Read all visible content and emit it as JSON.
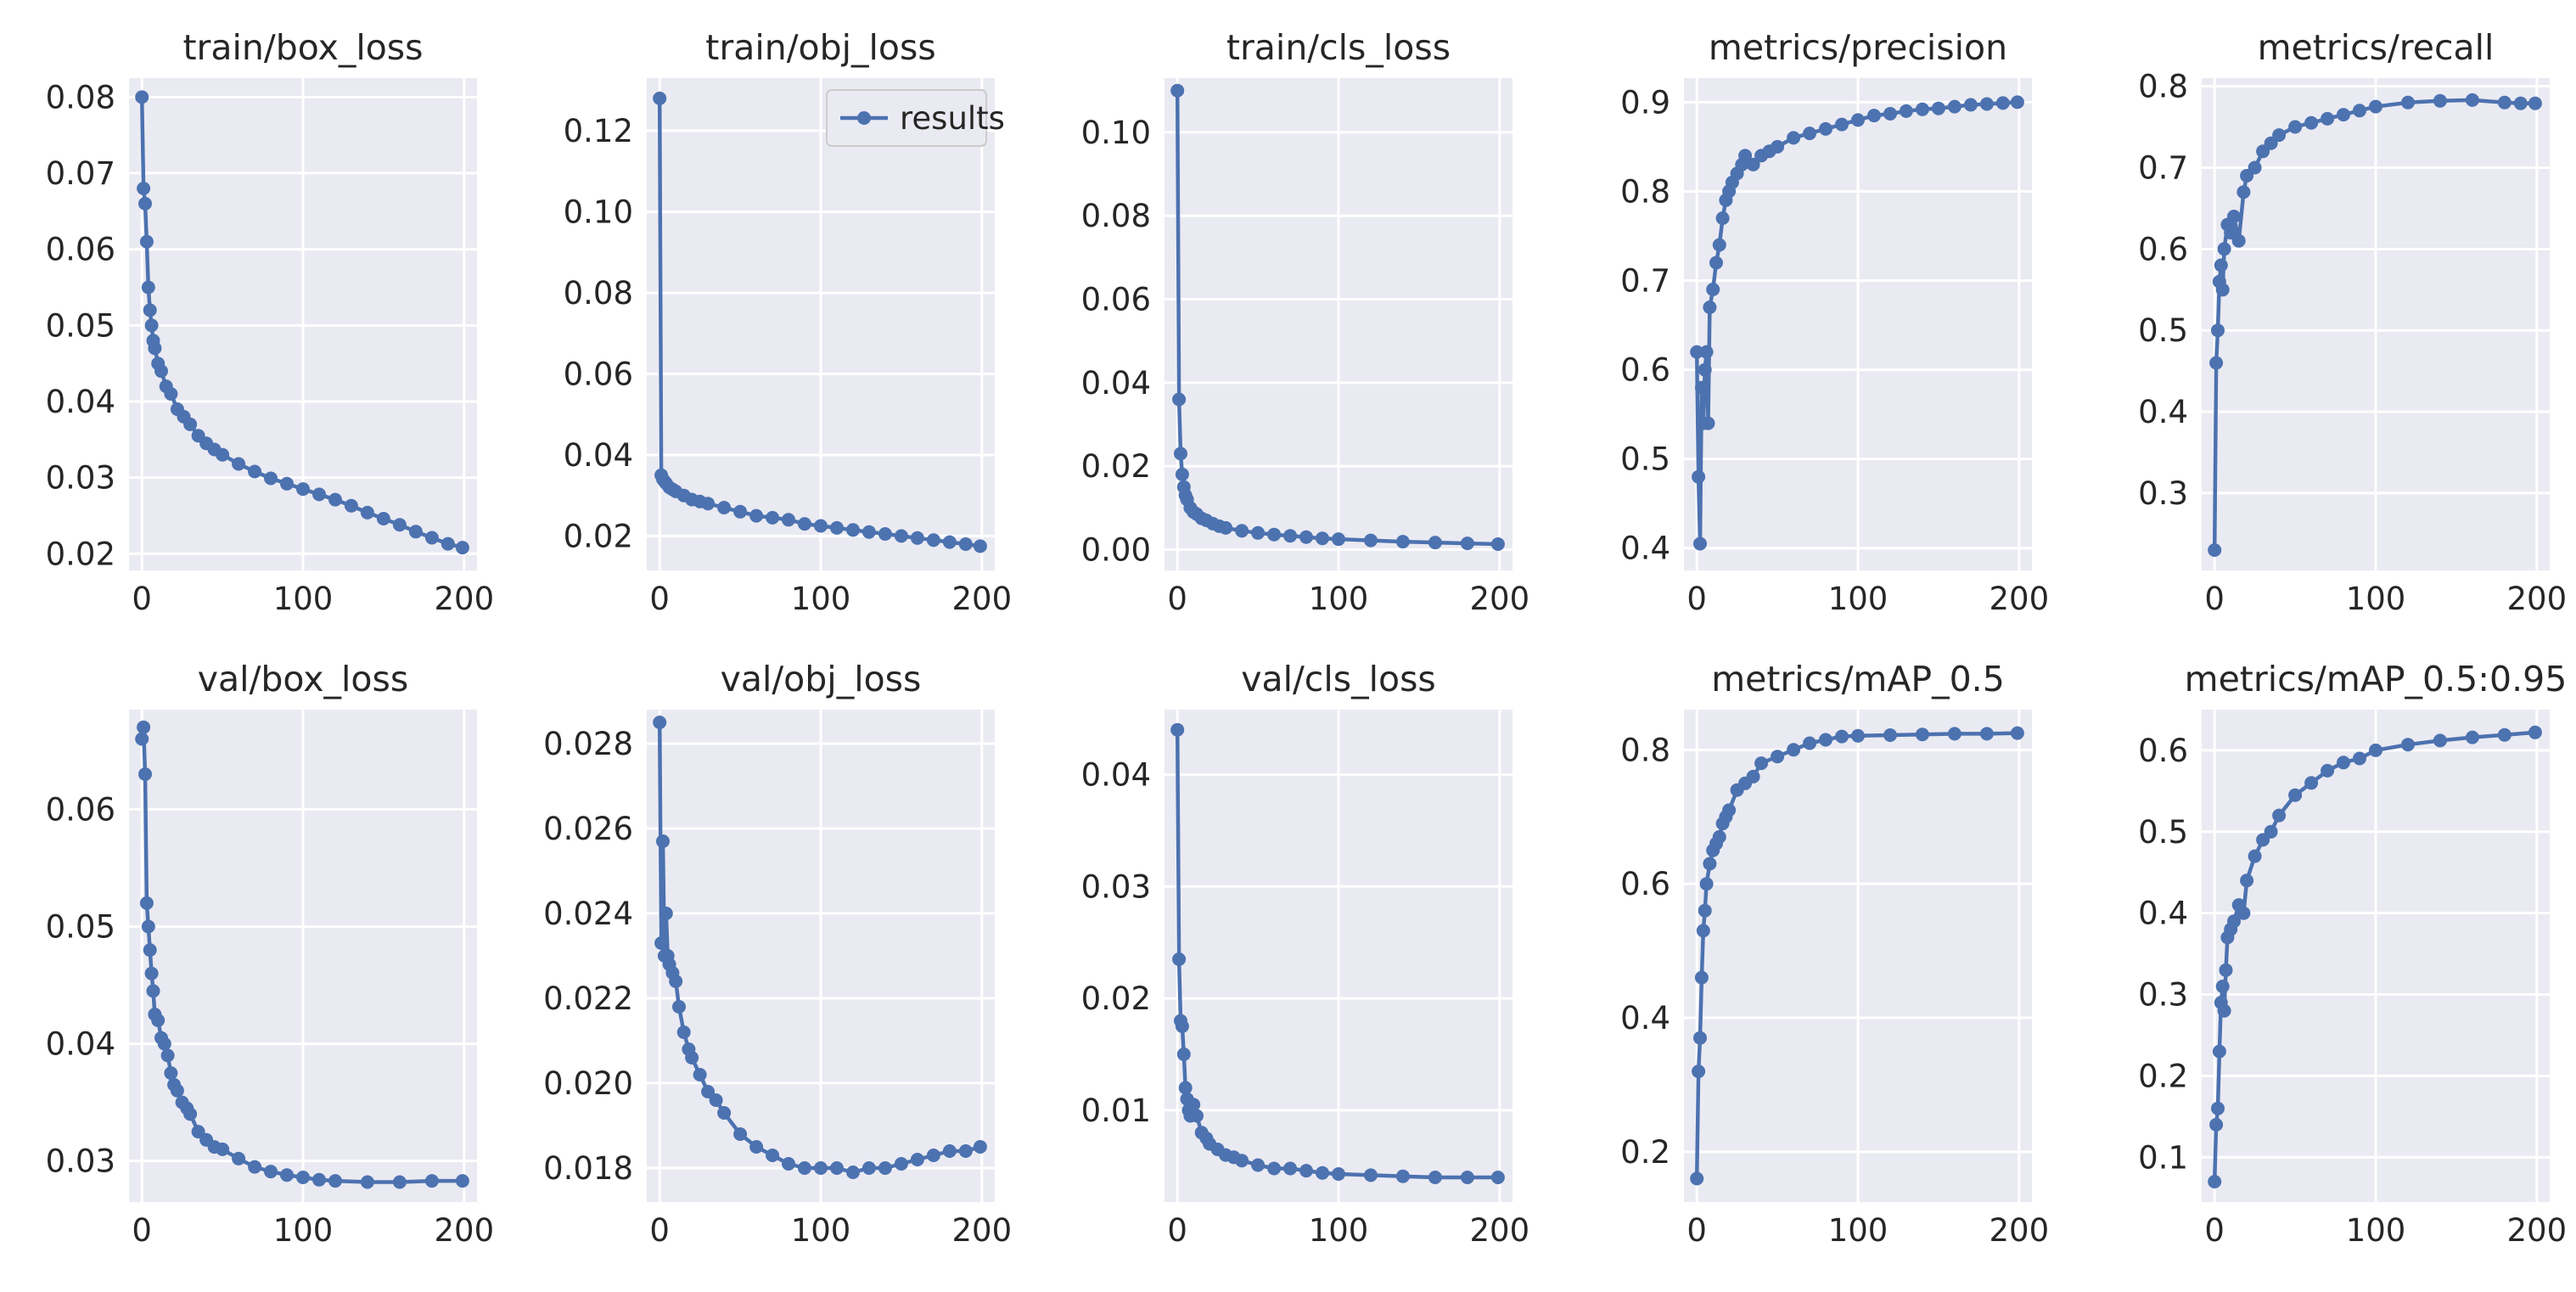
{
  "figure": {
    "series_color": "#4c72b0",
    "background": "#eaeaf2",
    "legend_label": "results"
  },
  "chart_data": [
    {
      "type": "line",
      "title": "train/box_loss",
      "xlim": [
        -8,
        208
      ],
      "ylim": [
        0.0178,
        0.0825
      ],
      "xticks": [
        0,
        100,
        200
      ],
      "xtick_labels": [
        "0",
        "100",
        "200"
      ],
      "yticks": [
        0.02,
        0.03,
        0.04,
        0.05,
        0.06,
        0.07,
        0.08
      ],
      "ytick_labels": [
        "0.02",
        "0.03",
        "0.04",
        "0.05",
        "0.06",
        "0.07",
        "0.08"
      ],
      "legend": false,
      "series": [
        {
          "name": "results",
          "x": [
            0,
            1,
            2,
            3,
            4,
            5,
            6,
            7,
            8,
            10,
            12,
            15,
            18,
            22,
            26,
            30,
            35,
            40,
            45,
            50,
            60,
            70,
            80,
            90,
            100,
            110,
            120,
            130,
            140,
            150,
            160,
            170,
            180,
            190,
            199
          ],
          "y": [
            0.08,
            0.068,
            0.066,
            0.061,
            0.055,
            0.052,
            0.05,
            0.048,
            0.047,
            0.045,
            0.044,
            0.042,
            0.041,
            0.039,
            0.038,
            0.037,
            0.0355,
            0.0345,
            0.0337,
            0.033,
            0.0318,
            0.0308,
            0.0299,
            0.0292,
            0.0285,
            0.0278,
            0.0271,
            0.0263,
            0.0254,
            0.0246,
            0.0238,
            0.0229,
            0.0221,
            0.0213,
            0.0208
          ]
        }
      ]
    },
    {
      "type": "line",
      "title": "train/obj_loss",
      "xlim": [
        -8,
        208
      ],
      "ylim": [
        0.0115,
        0.133
      ],
      "xticks": [
        0,
        100,
        200
      ],
      "xtick_labels": [
        "0",
        "100",
        "200"
      ],
      "yticks": [
        0.02,
        0.04,
        0.06,
        0.08,
        0.1,
        0.12
      ],
      "ytick_labels": [
        "0.02",
        "0.04",
        "0.06",
        "0.08",
        "0.10",
        "0.12"
      ],
      "legend": true,
      "series": [
        {
          "name": "results",
          "x": [
            0,
            1,
            2,
            3,
            4,
            6,
            8,
            10,
            15,
            20,
            25,
            30,
            40,
            50,
            60,
            70,
            80,
            90,
            100,
            110,
            120,
            130,
            140,
            150,
            160,
            170,
            180,
            190,
            199
          ],
          "y": [
            0.128,
            0.035,
            0.034,
            0.0335,
            0.033,
            0.032,
            0.0315,
            0.031,
            0.03,
            0.029,
            0.0285,
            0.028,
            0.027,
            0.026,
            0.025,
            0.0245,
            0.024,
            0.023,
            0.0225,
            0.022,
            0.0215,
            0.021,
            0.0205,
            0.02,
            0.0195,
            0.019,
            0.0185,
            0.018,
            0.0175
          ]
        }
      ]
    },
    {
      "type": "line",
      "title": "train/cls_loss",
      "xlim": [
        -8,
        208
      ],
      "ylim": [
        -0.005,
        0.113
      ],
      "xticks": [
        0,
        100,
        200
      ],
      "xtick_labels": [
        "0",
        "100",
        "200"
      ],
      "yticks": [
        0.0,
        0.02,
        0.04,
        0.06,
        0.08,
        0.1
      ],
      "ytick_labels": [
        "0.00",
        "0.02",
        "0.04",
        "0.06",
        "0.08",
        "0.10"
      ],
      "legend": false,
      "series": [
        {
          "name": "results",
          "x": [
            0,
            1,
            2,
            3,
            4,
            5,
            6,
            8,
            10,
            12,
            15,
            18,
            22,
            26,
            30,
            40,
            50,
            60,
            70,
            80,
            90,
            100,
            120,
            140,
            160,
            180,
            199
          ],
          "y": [
            0.11,
            0.036,
            0.023,
            0.018,
            0.015,
            0.013,
            0.012,
            0.01,
            0.009,
            0.0085,
            0.0075,
            0.007,
            0.0062,
            0.0056,
            0.0052,
            0.0045,
            0.004,
            0.0036,
            0.0033,
            0.003,
            0.0027,
            0.0025,
            0.0022,
            0.0019,
            0.0017,
            0.0015,
            0.0013
          ]
        }
      ]
    },
    {
      "type": "line",
      "title": "metrics/precision",
      "xlim": [
        -8,
        208
      ],
      "ylim": [
        0.375,
        0.927
      ],
      "xticks": [
        0,
        100,
        200
      ],
      "xtick_labels": [
        "0",
        "100",
        "200"
      ],
      "yticks": [
        0.4,
        0.5,
        0.6,
        0.7,
        0.8,
        0.9
      ],
      "ytick_labels": [
        "0.4",
        "0.5",
        "0.6",
        "0.7",
        "0.8",
        "0.9"
      ],
      "legend": false,
      "series": [
        {
          "name": "results",
          "x": [
            0,
            1,
            2,
            3,
            4,
            5,
            6,
            7,
            8,
            10,
            12,
            14,
            16,
            18,
            20,
            22,
            25,
            28,
            30,
            35,
            40,
            45,
            50,
            60,
            70,
            80,
            90,
            100,
            110,
            120,
            130,
            140,
            150,
            160,
            170,
            180,
            190,
            199
          ],
          "y": [
            0.62,
            0.48,
            0.405,
            0.58,
            0.54,
            0.6,
            0.62,
            0.54,
            0.67,
            0.69,
            0.72,
            0.74,
            0.77,
            0.79,
            0.8,
            0.81,
            0.82,
            0.83,
            0.84,
            0.83,
            0.84,
            0.845,
            0.85,
            0.86,
            0.865,
            0.87,
            0.875,
            0.88,
            0.885,
            0.887,
            0.89,
            0.892,
            0.893,
            0.895,
            0.897,
            0.898,
            0.899,
            0.9
          ]
        }
      ]
    },
    {
      "type": "line",
      "title": "metrics/recall",
      "xlim": [
        -8,
        208
      ],
      "ylim": [
        0.205,
        0.81
      ],
      "xticks": [
        0,
        100,
        200
      ],
      "xtick_labels": [
        "0",
        "100",
        "200"
      ],
      "yticks": [
        0.3,
        0.4,
        0.5,
        0.6,
        0.7,
        0.8
      ],
      "ytick_labels": [
        "0.3",
        "0.4",
        "0.5",
        "0.6",
        "0.7",
        "0.8"
      ],
      "legend": false,
      "series": [
        {
          "name": "results",
          "x": [
            0,
            1,
            2,
            3,
            4,
            5,
            6,
            8,
            10,
            12,
            15,
            18,
            20,
            25,
            30,
            35,
            40,
            50,
            60,
            70,
            80,
            90,
            100,
            120,
            140,
            160,
            180,
            190,
            199
          ],
          "y": [
            0.23,
            0.46,
            0.5,
            0.56,
            0.58,
            0.55,
            0.6,
            0.63,
            0.62,
            0.64,
            0.61,
            0.67,
            0.69,
            0.7,
            0.72,
            0.73,
            0.74,
            0.75,
            0.755,
            0.76,
            0.765,
            0.77,
            0.775,
            0.78,
            0.782,
            0.783,
            0.78,
            0.779,
            0.779
          ]
        }
      ]
    },
    {
      "type": "line",
      "title": "val/box_loss",
      "xlim": [
        -8,
        208
      ],
      "ylim": [
        0.0265,
        0.0685
      ],
      "xticks": [
        0,
        100,
        200
      ],
      "xtick_labels": [
        "0",
        "100",
        "200"
      ],
      "yticks": [
        0.03,
        0.04,
        0.05,
        0.06
      ],
      "ytick_labels": [
        "0.03",
        "0.04",
        "0.05",
        "0.06"
      ],
      "legend": false,
      "series": [
        {
          "name": "results",
          "x": [
            0,
            1,
            2,
            3,
            4,
            5,
            6,
            7,
            8,
            10,
            12,
            14,
            16,
            18,
            20,
            22,
            25,
            28,
            30,
            35,
            40,
            45,
            50,
            60,
            70,
            80,
            90,
            100,
            110,
            120,
            140,
            160,
            180,
            199
          ],
          "y": [
            0.066,
            0.067,
            0.063,
            0.052,
            0.05,
            0.048,
            0.046,
            0.0445,
            0.0425,
            0.042,
            0.0405,
            0.04,
            0.039,
            0.0375,
            0.0365,
            0.036,
            0.035,
            0.0345,
            0.034,
            0.0325,
            0.0318,
            0.0312,
            0.031,
            0.0302,
            0.0295,
            0.0291,
            0.0288,
            0.0286,
            0.0284,
            0.0283,
            0.0282,
            0.0282,
            0.0283,
            0.0283
          ]
        }
      ]
    },
    {
      "type": "line",
      "title": "val/obj_loss",
      "xlim": [
        -8,
        208
      ],
      "ylim": [
        0.0172,
        0.0288
      ],
      "xticks": [
        0,
        100,
        200
      ],
      "xtick_labels": [
        "0",
        "100",
        "200"
      ],
      "yticks": [
        0.018,
        0.02,
        0.022,
        0.024,
        0.026,
        0.028
      ],
      "ytick_labels": [
        "0.018",
        "0.020",
        "0.022",
        "0.024",
        "0.026",
        "0.028"
      ],
      "legend": false,
      "series": [
        {
          "name": "results",
          "x": [
            0,
            1,
            2,
            3,
            4,
            5,
            6,
            8,
            10,
            12,
            15,
            18,
            20,
            25,
            30,
            35,
            40,
            50,
            60,
            70,
            80,
            90,
            100,
            110,
            120,
            130,
            140,
            150,
            160,
            170,
            180,
            190,
            199
          ],
          "y": [
            0.0285,
            0.0233,
            0.0257,
            0.023,
            0.024,
            0.023,
            0.0228,
            0.0226,
            0.0224,
            0.0218,
            0.0212,
            0.0208,
            0.0206,
            0.0202,
            0.0198,
            0.0196,
            0.0193,
            0.0188,
            0.0185,
            0.0183,
            0.0181,
            0.018,
            0.018,
            0.018,
            0.0179,
            0.018,
            0.018,
            0.0181,
            0.0182,
            0.0183,
            0.0184,
            0.0184,
            0.0185
          ]
        }
      ]
    },
    {
      "type": "line",
      "title": "val/cls_loss",
      "xlim": [
        -8,
        208
      ],
      "ylim": [
        0.0018,
        0.0458
      ],
      "xticks": [
        0,
        100,
        200
      ],
      "xtick_labels": [
        "0",
        "100",
        "200"
      ],
      "yticks": [
        0.01,
        0.02,
        0.03,
        0.04
      ],
      "ytick_labels": [
        "0.01",
        "0.02",
        "0.03",
        "0.04"
      ],
      "legend": false,
      "series": [
        {
          "name": "results",
          "x": [
            0,
            1,
            2,
            3,
            4,
            5,
            6,
            7,
            8,
            10,
            12,
            15,
            18,
            20,
            25,
            30,
            35,
            40,
            50,
            60,
            70,
            80,
            90,
            100,
            120,
            140,
            160,
            180,
            199
          ],
          "y": [
            0.044,
            0.0235,
            0.018,
            0.0175,
            0.015,
            0.012,
            0.011,
            0.01,
            0.0095,
            0.0105,
            0.0095,
            0.008,
            0.0075,
            0.007,
            0.0065,
            0.006,
            0.0058,
            0.0055,
            0.0051,
            0.0048,
            0.0048,
            0.0046,
            0.0044,
            0.0043,
            0.0042,
            0.0041,
            0.004,
            0.004,
            0.004
          ]
        }
      ]
    },
    {
      "type": "line",
      "title": "metrics/mAP_0.5",
      "xlim": [
        -8,
        208
      ],
      "ylim": [
        0.125,
        0.86
      ],
      "xticks": [
        0,
        100,
        200
      ],
      "xtick_labels": [
        "0",
        "100",
        "200"
      ],
      "yticks": [
        0.2,
        0.4,
        0.6,
        0.8
      ],
      "ytick_labels": [
        "0.2",
        "0.4",
        "0.6",
        "0.8"
      ],
      "legend": false,
      "series": [
        {
          "name": "results",
          "x": [
            0,
            1,
            2,
            3,
            4,
            5,
            6,
            8,
            10,
            12,
            14,
            16,
            18,
            20,
            25,
            30,
            35,
            40,
            50,
            60,
            70,
            80,
            90,
            100,
            120,
            140,
            160,
            180,
            199
          ],
          "y": [
            0.16,
            0.32,
            0.37,
            0.46,
            0.53,
            0.56,
            0.6,
            0.63,
            0.65,
            0.66,
            0.67,
            0.69,
            0.7,
            0.71,
            0.74,
            0.75,
            0.76,
            0.78,
            0.79,
            0.8,
            0.81,
            0.815,
            0.82,
            0.821,
            0.822,
            0.823,
            0.824,
            0.824,
            0.825
          ]
        }
      ]
    },
    {
      "type": "line",
      "title": "metrics/mAP_0.5:0.95",
      "xlim": [
        -8,
        208
      ],
      "ylim": [
        0.045,
        0.65
      ],
      "xticks": [
        0,
        100,
        200
      ],
      "xtick_labels": [
        "0",
        "100",
        "200"
      ],
      "yticks": [
        0.1,
        0.2,
        0.3,
        0.4,
        0.5,
        0.6
      ],
      "ytick_labels": [
        "0.1",
        "0.2",
        "0.3",
        "0.4",
        "0.5",
        "0.6"
      ],
      "legend": false,
      "series": [
        {
          "name": "results",
          "x": [
            0,
            1,
            2,
            3,
            4,
            5,
            6,
            7,
            8,
            10,
            12,
            15,
            18,
            20,
            25,
            30,
            35,
            40,
            50,
            60,
            70,
            80,
            90,
            100,
            120,
            140,
            160,
            180,
            199
          ],
          "y": [
            0.07,
            0.14,
            0.16,
            0.23,
            0.29,
            0.31,
            0.28,
            0.33,
            0.37,
            0.38,
            0.39,
            0.41,
            0.4,
            0.44,
            0.47,
            0.49,
            0.5,
            0.52,
            0.545,
            0.56,
            0.575,
            0.585,
            0.59,
            0.6,
            0.607,
            0.612,
            0.616,
            0.619,
            0.622
          ]
        }
      ]
    }
  ]
}
